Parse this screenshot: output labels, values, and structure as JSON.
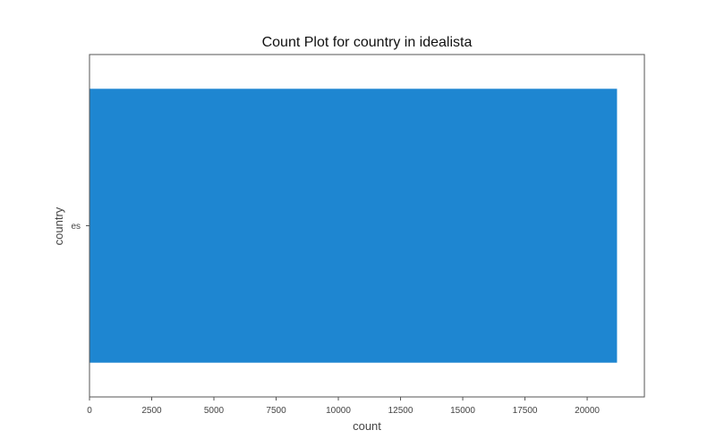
{
  "chart_data": {
    "type": "bar",
    "orientation": "horizontal",
    "title": "Count Plot for country in idealista",
    "xlabel": "count",
    "ylabel": "country",
    "categories": [
      "es"
    ],
    "values": [
      21200
    ],
    "xlim": [
      0,
      22300
    ],
    "xticks": [
      0,
      2500,
      5000,
      7500,
      10000,
      12500,
      15000,
      17500,
      20000
    ],
    "grid": false,
    "bar_color": "#1e86d1",
    "frame_color": "#555555"
  }
}
